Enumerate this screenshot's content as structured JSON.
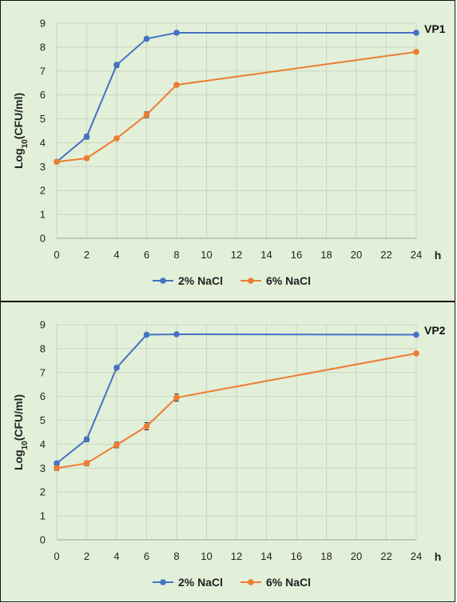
{
  "chart_data": [
    {
      "type": "line",
      "panel_label": "VP1",
      "ylabel": "Log10(CFU/ml)",
      "ylabel_main": "Log",
      "ylabel_sub": "10",
      "ylabel_rest": "(CFU/ml)",
      "xlabel": "h",
      "xlim": [
        0,
        24
      ],
      "ylim": [
        0,
        9
      ],
      "xticks": [
        0,
        2,
        4,
        6,
        8,
        10,
        12,
        14,
        16,
        18,
        20,
        22,
        24
      ],
      "yticks": [
        0,
        1,
        2,
        3,
        4,
        5,
        6,
        7,
        8,
        9
      ],
      "grid": true,
      "legend_position": "bottom",
      "series": [
        {
          "name": "2% NaCl",
          "color": "#4472c4",
          "x": [
            0,
            2,
            4,
            6,
            8,
            24
          ],
          "y": [
            3.2,
            4.25,
            7.25,
            8.35,
            8.6,
            8.6
          ],
          "err": [
            0.05,
            0.1,
            0.1,
            0.08,
            0.03,
            0.03
          ]
        },
        {
          "name": "6% NaCl",
          "color": "#ed7d31",
          "x": [
            0,
            2,
            4,
            6,
            8,
            24
          ],
          "y": [
            3.2,
            3.35,
            4.18,
            5.17,
            6.42,
            7.8
          ],
          "err": [
            0.05,
            0.08,
            0.06,
            0.12,
            0.08,
            0.06
          ]
        }
      ]
    },
    {
      "type": "line",
      "panel_label": "VP2",
      "ylabel": "Log10(CFU/ml)",
      "ylabel_main": "Log",
      "ylabel_sub": "10",
      "ylabel_rest": "(CFU/ml)",
      "xlabel": "h",
      "xlim": [
        0,
        24
      ],
      "ylim": [
        0,
        9
      ],
      "xticks": [
        0,
        2,
        4,
        6,
        8,
        10,
        12,
        14,
        16,
        18,
        20,
        22,
        24
      ],
      "yticks": [
        0,
        1,
        2,
        3,
        4,
        5,
        6,
        7,
        8,
        9
      ],
      "grid": true,
      "legend_position": "bottom",
      "series": [
        {
          "name": "2% NaCl",
          "color": "#4472c4",
          "x": [
            0,
            2,
            4,
            6,
            8,
            24
          ],
          "y": [
            3.2,
            4.2,
            7.2,
            8.58,
            8.6,
            8.58
          ],
          "err": [
            0.05,
            0.1,
            0.08,
            0.04,
            0.03,
            0.03
          ]
        },
        {
          "name": "6% NaCl",
          "color": "#ed7d31",
          "x": [
            0,
            2,
            4,
            6,
            8,
            24
          ],
          "y": [
            3.0,
            3.2,
            3.97,
            4.75,
            5.95,
            7.8
          ],
          "err": [
            0.1,
            0.1,
            0.12,
            0.15,
            0.15,
            0.05
          ]
        }
      ]
    }
  ]
}
